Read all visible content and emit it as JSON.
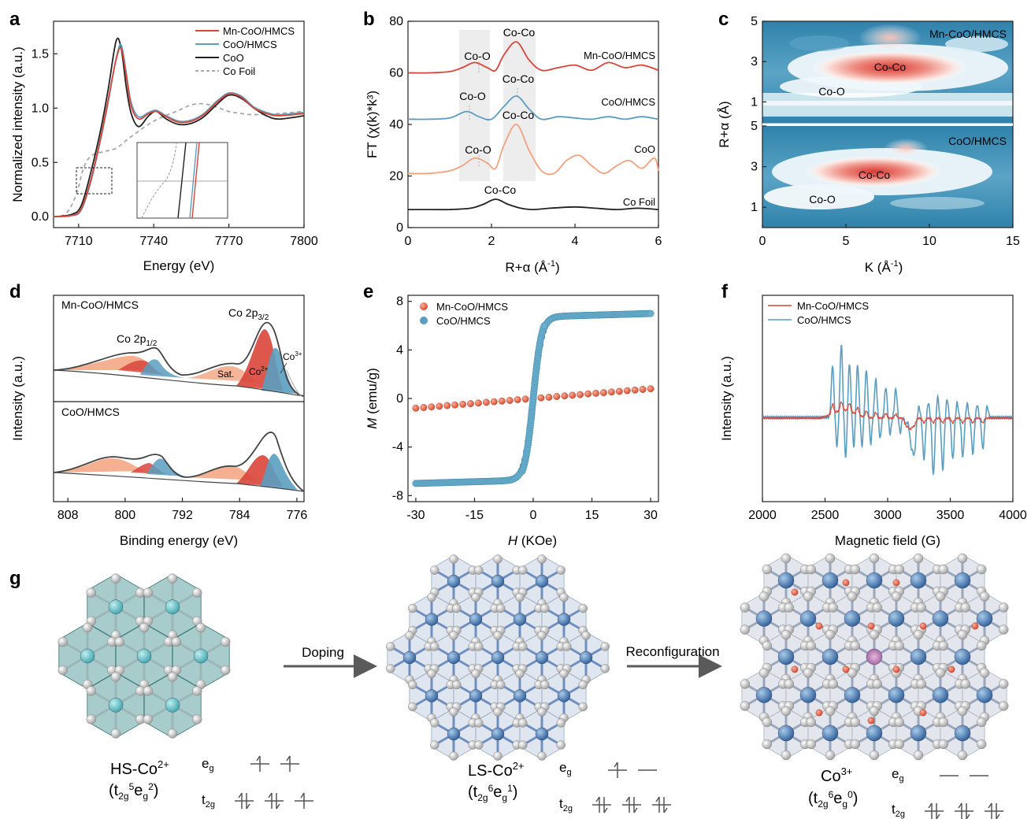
{
  "panels": {
    "a": {
      "letter": "a",
      "xlabel": "Energy (eV)",
      "ylabel": "Normalized intensity (a.u.)",
      "xticks": [
        "7710",
        "7740",
        "7770",
        "7800"
      ],
      "yticks": [
        "0.0",
        "0.5",
        "1.0",
        "1.5"
      ],
      "legend": [
        "Mn-CoO/HMCS",
        "CoO/HMCS",
        "CoO",
        "Co Foil"
      ]
    },
    "b": {
      "letter": "b",
      "xlabel": "R+α (Å",
      "xlabel_sup": "-1",
      "xlabel_end": ")",
      "ylabel": "FT (χ(k)*k³)",
      "xticks": [
        "0",
        "2",
        "4",
        "6"
      ],
      "yticks": [
        "0",
        "20",
        "40",
        "60",
        "80"
      ],
      "labels": [
        "Co-Co",
        "Co-O",
        "Mn-CoO/HMCS",
        "Co-Co",
        "Co-O",
        "CoO/HMCS",
        "Co-Co",
        "Co-O",
        "CoO",
        "Co-Co",
        "Co Foil"
      ]
    },
    "c": {
      "letter": "c",
      "xlabel": "K (Å",
      "xlabel_sup": "-1",
      "xlabel_end": ")",
      "ylabel": "R+α (Å)",
      "xticks": [
        "0",
        "5",
        "10",
        "15"
      ],
      "yticks_top": [
        "5",
        "3",
        "1"
      ],
      "yticks_bot": [
        "5",
        "3",
        "1"
      ],
      "top_label": "Mn-CoO/HMCS",
      "bot_label": "CoO/HMCS",
      "peak_co_co": "Co-Co",
      "peak_co_o": "Co-O"
    },
    "d": {
      "letter": "d",
      "xlabel": "Binding energy (eV)",
      "ylabel": "Intensity (a.u.)",
      "xticks": [
        "808",
        "800",
        "792",
        "784",
        "776"
      ],
      "top_label": "Mn-CoO/HMCS",
      "bot_label": "CoO/HMCS",
      "co2p12": "Co 2p",
      "co2p12_sub": "1/2",
      "co2p32": "Co 2p",
      "co2p32_sub": "3/2",
      "sat": "Sat.",
      "co2": "Co",
      "co2_sup": "2+",
      "co3": "Co",
      "co3_sup": "3+"
    },
    "e": {
      "letter": "e",
      "xlabel": "H",
      "xlabel_unit": " (KOe)",
      "ylabel": "M",
      "ylabel_unit": " (emu/g)",
      "xticks": [
        "-30",
        "-15",
        "0",
        "15",
        "30"
      ],
      "yticks": [
        "8",
        "4",
        "0",
        "-4",
        "-8"
      ],
      "legend": [
        "Mn-CoO/HMCS",
        "CoO/HMCS"
      ]
    },
    "f": {
      "letter": "f",
      "xlabel": "Magnetic field (G)",
      "ylabel": "Intensity (a.u.)",
      "xticks": [
        "2000",
        "2500",
        "3000",
        "3500",
        "4000"
      ],
      "legend": [
        "Mn-CoO/HMCS",
        "CoO/HMCS"
      ]
    },
    "g": {
      "letter": "g",
      "arrow1": "Doping",
      "arrow2": "Reconfiguration",
      "s1": {
        "name": "HS-Co",
        "sup": "2+",
        "cfg": "(t2g5eg2)"
      },
      "s2": {
        "name": "LS-Co",
        "sup": "2+",
        "cfg": "(t2g6eg1)"
      },
      "s3": {
        "name": "Co",
        "sup": "3+",
        "cfg": "(t2g6eg0)"
      },
      "eg": "e",
      "eg_sub": "g",
      "t2g": "t",
      "t2g_sub": "2g"
    }
  },
  "colors": {
    "mn": "#d9453a",
    "coo_hmcs": "#5a9ec0",
    "coo": "#222222",
    "foil": "#a8a8a8",
    "coo_orange": "#f2a27e"
  },
  "chart_data": [
    {
      "panel": "a",
      "type": "line",
      "title": "",
      "xlabel": "Energy (eV)",
      "ylabel": "Normalized intensity (a.u.)",
      "xlim": [
        7700,
        7800
      ],
      "ylim": [
        -0.1,
        1.8
      ],
      "series": [
        {
          "name": "Mn-CoO/HMCS",
          "x": [
            7700,
            7707,
            7711,
            7715,
            7719,
            7722,
            7725,
            7727,
            7729,
            7731,
            7734,
            7738,
            7741,
            7745,
            7750,
            7755,
            7760,
            7765,
            7770,
            7775,
            7780,
            7785,
            7790,
            7800
          ],
          "y": [
            0,
            0.01,
            0.07,
            0.35,
            0.75,
            1.1,
            1.45,
            1.55,
            1.3,
            1.02,
            0.9,
            0.95,
            0.97,
            0.92,
            0.87,
            0.88,
            0.94,
            1.05,
            1.13,
            1.1,
            1.0,
            0.95,
            0.93,
            0.95
          ]
        },
        {
          "name": "CoO/HMCS",
          "x": [
            7700,
            7707,
            7711,
            7715,
            7719,
            7722,
            7725,
            7727,
            7729,
            7731,
            7734,
            7738,
            7741,
            7745,
            7750,
            7755,
            7760,
            7765,
            7770,
            7775,
            7780,
            7785,
            7790,
            7800
          ],
          "y": [
            0,
            0.01,
            0.06,
            0.33,
            0.73,
            1.08,
            1.46,
            1.58,
            1.33,
            1.05,
            0.92,
            0.96,
            0.98,
            0.93,
            0.88,
            0.89,
            0.95,
            1.06,
            1.14,
            1.11,
            1.01,
            0.96,
            0.94,
            0.96
          ]
        },
        {
          "name": "CoO",
          "x": [
            7700,
            7707,
            7711,
            7715,
            7719,
            7722,
            7725,
            7727,
            7729,
            7731,
            7734,
            7738,
            7741,
            7745,
            7750,
            7755,
            7760,
            7765,
            7770,
            7775,
            7780,
            7785,
            7790,
            7800
          ],
          "y": [
            0,
            0.02,
            0.1,
            0.42,
            0.82,
            1.2,
            1.62,
            1.55,
            1.2,
            0.95,
            0.83,
            0.93,
            0.97,
            0.9,
            0.85,
            0.86,
            0.92,
            1.03,
            1.12,
            1.09,
            1.0,
            0.93,
            0.9,
            0.93
          ]
        },
        {
          "name": "Co Foil",
          "x": [
            7700,
            7705,
            7709,
            7712,
            7715,
            7720,
            7725,
            7730,
            7740,
            7750,
            7755,
            7760,
            7765,
            7770,
            7775,
            7780,
            7790,
            7800
          ],
          "y": [
            0,
            0.03,
            0.2,
            0.45,
            0.56,
            0.6,
            0.63,
            0.72,
            0.88,
            0.98,
            1.03,
            1.04,
            1.01,
            0.97,
            0.95,
            0.94,
            0.95,
            0.97
          ]
        }
      ]
    },
    {
      "panel": "b",
      "type": "line",
      "title": "",
      "xlabel": "R+α (Å-1)",
      "ylabel": "FT (χ(k)*k³)",
      "xlim": [
        0,
        6
      ],
      "ylim": [
        0,
        80
      ],
      "series": [
        {
          "name": "Mn-CoO/HMCS",
          "x": [
            0,
            0.5,
            1.0,
            1.3,
            1.6,
            1.9,
            2.1,
            2.3,
            2.6,
            2.9,
            3.2,
            3.6,
            4.0,
            4.4,
            4.8,
            5.2,
            5.6,
            6.0
          ],
          "y": [
            60,
            60,
            60.5,
            62,
            64,
            62,
            61,
            67,
            72,
            65,
            61,
            62,
            63,
            61,
            64,
            62,
            63,
            61
          ]
        },
        {
          "name": "CoO/HMCS",
          "x": [
            0,
            0.5,
            1.0,
            1.4,
            1.7,
            2.0,
            2.3,
            2.6,
            2.9,
            3.2,
            3.6,
            4.0,
            4.4,
            4.8,
            5.2,
            5.6,
            6.0
          ],
          "y": [
            42,
            42,
            42.5,
            45,
            43,
            42,
            47,
            51,
            46,
            42,
            43,
            42.5,
            42,
            43,
            42,
            43,
            42
          ]
        },
        {
          "name": "CoO",
          "x": [
            0,
            0.5,
            1.0,
            1.3,
            1.6,
            1.9,
            2.1,
            2.3,
            2.6,
            2.9,
            3.2,
            3.5,
            3.8,
            4.1,
            4.4,
            4.7,
            5.0,
            5.3,
            5.6,
            5.9,
            6.0
          ],
          "y": [
            21,
            21,
            22,
            24,
            27,
            25,
            23,
            32,
            40,
            30,
            22,
            21,
            26,
            28,
            24,
            21,
            24,
            26,
            23,
            27,
            22
          ]
        },
        {
          "name": "Co Foil",
          "x": [
            0,
            0.5,
            1.0,
            1.5,
            1.8,
            2.1,
            2.4,
            2.7,
            3.0,
            3.4,
            4.0,
            4.5,
            5.0,
            5.5,
            6.0
          ],
          "y": [
            7,
            7,
            7,
            7.5,
            9,
            11,
            9,
            7.5,
            7,
            7.5,
            8,
            7.5,
            7,
            7.5,
            7
          ]
        }
      ]
    },
    {
      "panel": "c",
      "type": "heatmap",
      "title": "",
      "xlabel": "K (Å-1)",
      "ylabel": "R+α (Å)",
      "xlim": [
        0,
        15
      ],
      "ylim": [
        0,
        5
      ],
      "maps": [
        {
          "name": "Mn-CoO/HMCS",
          "peaks": [
            {
              "label": "Co-Co",
              "k": 7.5,
              "r": 2.6
            },
            {
              "label": "Co-O",
              "k": 4,
              "r": 1.5
            }
          ]
        },
        {
          "name": "CoO/HMCS",
          "peaks": [
            {
              "label": "Co-Co",
              "k": 6.5,
              "r": 2.5
            },
            {
              "label": "Co-O",
              "k": 3.5,
              "r": 1.4
            }
          ]
        }
      ]
    },
    {
      "panel": "d",
      "type": "line",
      "title": "",
      "xlabel": "Binding energy (eV)",
      "ylabel": "Intensity (a.u.)",
      "xlim": [
        810,
        775
      ],
      "series": [
        {
          "name": "Mn-CoO/HMCS",
          "x": [
            810,
            806,
            803,
            800,
            798,
            797,
            796,
            794,
            791,
            789,
            787,
            785,
            783,
            781,
            780,
            779,
            778,
            776
          ],
          "y": [
            0.22,
            0.25,
            0.33,
            0.28,
            0.35,
            0.52,
            0.46,
            0.3,
            0.27,
            0.3,
            0.36,
            0.43,
            0.75,
            0.95,
            0.82,
            0.45,
            0.24,
            0.2
          ]
        },
        {
          "name": "CoO/HMCS",
          "x": [
            810,
            806,
            803,
            800,
            798,
            797,
            796,
            794,
            791,
            789,
            787,
            785,
            783,
            781,
            780,
            779,
            778,
            776
          ],
          "y": [
            0.22,
            0.25,
            0.33,
            0.28,
            0.35,
            0.5,
            0.44,
            0.3,
            0.28,
            0.32,
            0.38,
            0.45,
            0.73,
            0.92,
            0.8,
            0.42,
            0.24,
            0.2
          ]
        }
      ]
    },
    {
      "panel": "e",
      "type": "scatter",
      "title": "",
      "xlabel": "H (KOe)",
      "ylabel": "M (emu/g)",
      "xlim": [
        -32,
        32
      ],
      "ylim": [
        -8.5,
        8.5
      ],
      "series": [
        {
          "name": "Mn-CoO/HMCS",
          "x": [
            -30,
            -15,
            0,
            15,
            30
          ],
          "y": [
            -0.8,
            -0.4,
            0,
            0.4,
            0.8
          ]
        },
        {
          "name": "CoO/HMCS",
          "x": [
            -30,
            -20,
            -10,
            -5,
            -2,
            -1,
            0,
            1,
            2,
            5,
            10,
            20,
            30
          ],
          "y": [
            -7.0,
            -6.9,
            -6.7,
            -6.2,
            -4.8,
            -3.3,
            0,
            3.3,
            4.8,
            6.2,
            6.7,
            6.9,
            7.0
          ]
        }
      ]
    },
    {
      "panel": "f",
      "type": "line",
      "title": "",
      "xlabel": "Magnetic field (G)",
      "ylabel": "Intensity (a.u.)",
      "xlim": [
        2000,
        4000
      ],
      "series": [
        {
          "name": "Mn-CoO/HMCS"
        },
        {
          "name": "CoO/HMCS"
        }
      ]
    }
  ]
}
